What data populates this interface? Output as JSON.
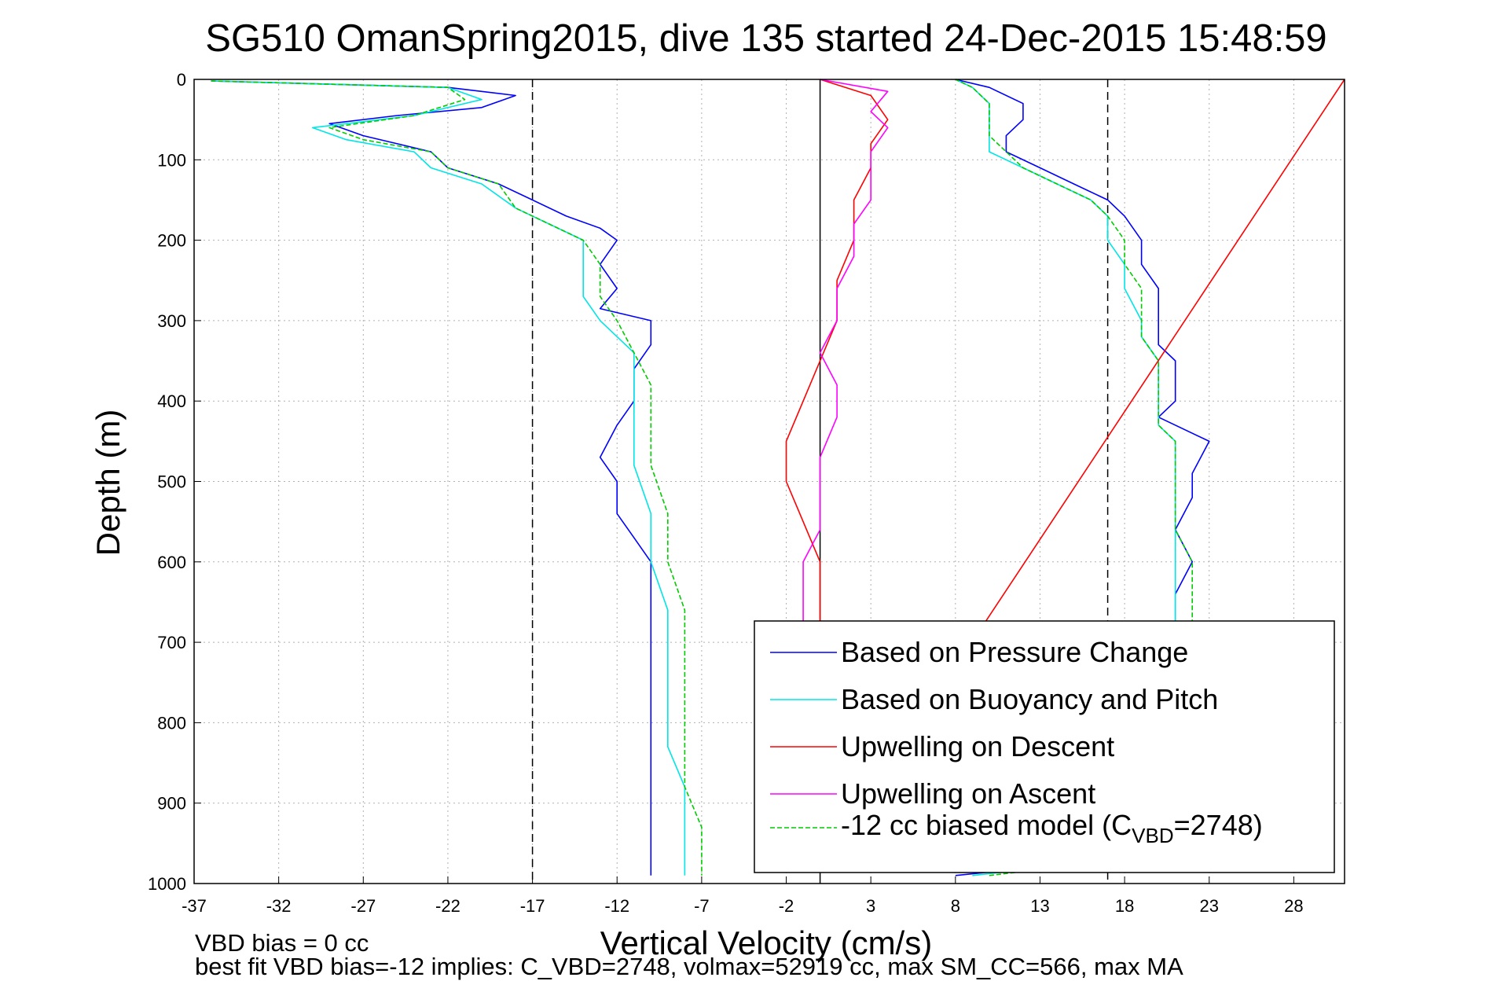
{
  "chart_data": {
    "type": "line",
    "title": "SG510 OmanSpring2015, dive 135 started 24-Dec-2015 15:48:59",
    "xlabel": "Vertical Velocity (cm/s)",
    "ylabel": "Depth (m)",
    "xlim": [
      -37,
      31
    ],
    "ylim": [
      1000,
      0
    ],
    "x_ticks": [
      -37,
      -32,
      -27,
      -22,
      -17,
      -12,
      -7,
      -2,
      3,
      8,
      13,
      18,
      23,
      28
    ],
    "y_ticks": [
      0,
      100,
      200,
      300,
      400,
      500,
      600,
      700,
      800,
      900,
      1000
    ],
    "grid": true,
    "legend_position": "bottom-right",
    "reference_lines": [
      {
        "x": -17,
        "style": "dashed",
        "color": "#000000"
      },
      {
        "x": 0,
        "style": "solid",
        "color": "#000000"
      },
      {
        "x": 17,
        "style": "dashed",
        "color": "#000000"
      }
    ],
    "series": [
      {
        "name": "Based on Pressure Change",
        "color": "#0000ff",
        "style": "solid",
        "points": [
          [
            [
              -36,
              2
            ],
            [
              -22,
              10
            ],
            [
              -18,
              20
            ],
            [
              -20,
              35
            ],
            [
              -25,
              45
            ],
            [
              -29,
              55
            ],
            [
              -27,
              70
            ],
            [
              -23,
              90
            ],
            [
              -22,
              110
            ],
            [
              -19,
              130
            ],
            [
              -17,
              150
            ],
            [
              -15,
              170
            ],
            [
              -13,
              185
            ],
            [
              -12,
              200
            ],
            [
              -13,
              230
            ],
            [
              -12,
              260
            ],
            [
              -13,
              285
            ],
            [
              -10,
              300
            ],
            [
              -10,
              330
            ],
            [
              -11,
              360
            ],
            [
              -11,
              400
            ],
            [
              -12,
              430
            ],
            [
              -13,
              470
            ],
            [
              -12,
              500
            ],
            [
              -12,
              540
            ],
            [
              -11,
              570
            ],
            [
              -10,
              600
            ],
            [
              -10,
              640
            ],
            [
              -10,
              680
            ],
            [
              -10,
              720
            ],
            [
              -10,
              760
            ],
            [
              -10,
              800
            ],
            [
              -10,
              840
            ],
            [
              -10,
              880
            ],
            [
              -10,
              920
            ],
            [
              -10,
              960
            ],
            [
              -10,
              990
            ]
          ],
          [
            [
              8,
              990
            ],
            [
              22,
              960
            ],
            [
              22,
              900
            ],
            [
              22,
              800
            ],
            [
              22,
              740
            ],
            [
              21,
              680
            ],
            [
              21,
              640
            ],
            [
              22,
              600
            ],
            [
              21,
              560
            ],
            [
              22,
              520
            ],
            [
              22,
              490
            ],
            [
              23,
              450
            ],
            [
              20,
              420
            ],
            [
              21,
              400
            ],
            [
              21,
              350
            ],
            [
              20,
              330
            ],
            [
              20,
              300
            ],
            [
              20,
              260
            ],
            [
              19,
              230
            ],
            [
              19,
              200
            ],
            [
              18,
              170
            ],
            [
              17,
              150
            ],
            [
              15,
              130
            ],
            [
              13,
              110
            ],
            [
              11,
              90
            ],
            [
              11,
              70
            ],
            [
              12,
              50
            ],
            [
              12,
              30
            ],
            [
              10,
              10
            ],
            [
              8,
              0
            ]
          ]
        ]
      },
      {
        "name": "Based on Buoyancy and Pitch",
        "color": "#00e5e5",
        "style": "solid",
        "points": [
          [
            [
              -36,
              2
            ],
            [
              -22,
              10
            ],
            [
              -20,
              25
            ],
            [
              -24,
              45
            ],
            [
              -30,
              60
            ],
            [
              -28,
              75
            ],
            [
              -24,
              90
            ],
            [
              -23,
              110
            ],
            [
              -20,
              130
            ],
            [
              -18,
              160
            ],
            [
              -16,
              180
            ],
            [
              -14,
              200
            ],
            [
              -14,
              230
            ],
            [
              -14,
              270
            ],
            [
              -13,
              300
            ],
            [
              -11,
              340
            ],
            [
              -11,
              380
            ],
            [
              -11,
              430
            ],
            [
              -11,
              480
            ],
            [
              -10,
              540
            ],
            [
              -10,
              600
            ],
            [
              -9,
              660
            ],
            [
              -9,
              720
            ],
            [
              -9,
              780
            ],
            [
              -9,
              830
            ],
            [
              -8,
              880
            ],
            [
              -8,
              930
            ],
            [
              -8,
              990
            ]
          ],
          [
            [
              9,
              990
            ],
            [
              22,
              960
            ],
            [
              21,
              900
            ],
            [
              21,
              800
            ],
            [
              21,
              740
            ],
            [
              21,
              680
            ],
            [
              21,
              640
            ],
            [
              21,
              600
            ],
            [
              21,
              560
            ],
            [
              21,
              520
            ],
            [
              21,
              490
            ],
            [
              21,
              450
            ],
            [
              20,
              430
            ],
            [
              20,
              400
            ],
            [
              20,
              350
            ],
            [
              19,
              320
            ],
            [
              19,
              300
            ],
            [
              18,
              260
            ],
            [
              18,
              230
            ],
            [
              17,
              200
            ],
            [
              17,
              170
            ],
            [
              16,
              150
            ],
            [
              14,
              130
            ],
            [
              12,
              110
            ],
            [
              10,
              90
            ],
            [
              10,
              70
            ],
            [
              10,
              50
            ],
            [
              10,
              30
            ],
            [
              9,
              10
            ],
            [
              8,
              0
            ]
          ]
        ]
      },
      {
        "name": "Upwelling on Descent",
        "color": "#ff0000",
        "style": "solid",
        "points": [
          [
            [
              0,
              0
            ],
            [
              3,
              20
            ],
            [
              4,
              50
            ],
            [
              3,
              80
            ],
            [
              3,
              110
            ],
            [
              2,
              150
            ],
            [
              2,
              200
            ],
            [
              1,
              250
            ],
            [
              1,
              300
            ],
            [
              0,
              350
            ],
            [
              -1,
              400
            ],
            [
              -2,
              450
            ],
            [
              -2,
              500
            ],
            [
              -1,
              550
            ],
            [
              0,
              600
            ],
            [
              0,
              650
            ],
            [
              0,
              700
            ]
          ],
          [
            [
              0,
              985
            ],
            [
              31,
              0
            ]
          ]
        ]
      },
      {
        "name": "Upwelling on Ascent",
        "color": "#ff00ff",
        "style": "solid",
        "points": [
          [
            [
              0,
              0
            ],
            [
              4,
              15
            ],
            [
              3,
              40
            ],
            [
              4,
              60
            ],
            [
              3,
              90
            ],
            [
              3,
              120
            ],
            [
              3,
              150
            ],
            [
              2,
              180
            ],
            [
              2,
              220
            ],
            [
              1,
              260
            ],
            [
              1,
              300
            ],
            [
              0,
              340
            ],
            [
              1,
              380
            ],
            [
              1,
              420
            ],
            [
              0,
              470
            ],
            [
              0,
              510
            ],
            [
              0,
              560
            ],
            [
              -1,
              600
            ],
            [
              -1,
              650
            ],
            [
              -1,
              680
            ]
          ]
        ]
      },
      {
        "name": "-12 cc biased model (C₀)",
        "color": "#00cc00",
        "style": "dashed",
        "points": [
          [
            [
              -36,
              2
            ],
            [
              -22,
              10
            ],
            [
              -21,
              25
            ],
            [
              -24,
              45
            ],
            [
              -29,
              60
            ],
            [
              -27,
              75
            ],
            [
              -23,
              90
            ],
            [
              -22,
              110
            ],
            [
              -19,
              130
            ],
            [
              -18,
              160
            ],
            [
              -16,
              180
            ],
            [
              -14,
              200
            ],
            [
              -13,
              230
            ],
            [
              -13,
              270
            ],
            [
              -12,
              300
            ],
            [
              -11,
              340
            ],
            [
              -10,
              380
            ],
            [
              -10,
              430
            ],
            [
              -10,
              480
            ],
            [
              -9,
              540
            ],
            [
              -9,
              600
            ],
            [
              -8,
              660
            ],
            [
              -8,
              720
            ],
            [
              -8,
              780
            ],
            [
              -8,
              830
            ],
            [
              -8,
              880
            ],
            [
              -7,
              930
            ],
            [
              -7,
              990
            ]
          ],
          [
            [
              10,
              990
            ],
            [
              22,
              960
            ],
            [
              22,
              900
            ],
            [
              22,
              800
            ],
            [
              22,
              740
            ],
            [
              22,
              680
            ],
            [
              22,
              640
            ],
            [
              22,
              600
            ],
            [
              21,
              560
            ],
            [
              21,
              520
            ],
            [
              21,
              490
            ],
            [
              21,
              450
            ],
            [
              20,
              430
            ],
            [
              20,
              400
            ],
            [
              20,
              350
            ],
            [
              19,
              320
            ],
            [
              19,
              300
            ],
            [
              19,
              260
            ],
            [
              18,
              230
            ],
            [
              18,
              200
            ],
            [
              17,
              170
            ],
            [
              16,
              150
            ],
            [
              14,
              130
            ],
            [
              12,
              110
            ],
            [
              11,
              90
            ],
            [
              10,
              70
            ],
            [
              10,
              50
            ],
            [
              10,
              30
            ],
            [
              9,
              10
            ],
            [
              8,
              0
            ]
          ]
        ]
      }
    ]
  },
  "legend": {
    "items": [
      {
        "label": "Based on Pressure Change",
        "color": "#0000ff",
        "dash": false
      },
      {
        "label": "Based on Buoyancy and Pitch",
        "color": "#00e5e5",
        "dash": false
      },
      {
        "label": "Upwelling on Descent",
        "color": "#ff0000",
        "dash": false
      },
      {
        "label": "Upwelling on Ascent",
        "color": "#ff00ff",
        "dash": false
      }
    ],
    "model_item": {
      "prefix": "-12 cc biased model (C",
      "sub": "VBD",
      "suffix": "=2748)",
      "color": "#00cc00",
      "dash": true
    }
  },
  "footnotes": {
    "line1": "VBD bias = 0 cc",
    "line2": "best fit VBD bias=-12 implies: C_VBD=2748, volmax=52919 cc, max SM_CC=566, max MA"
  }
}
